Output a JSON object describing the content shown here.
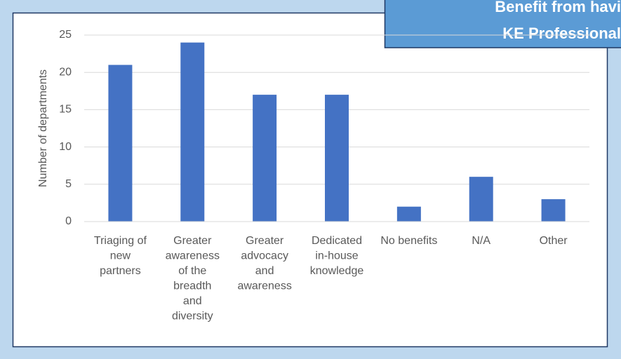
{
  "chart_data": {
    "type": "bar",
    "title": [
      "Benefit from havi",
      "KE Professional"
    ],
    "y_label": "Number of departments",
    "categories": [
      "Triaging of new partners",
      "Greater awareness of the breadth and diversity",
      "Greater advocacy and awareness",
      "Dedicated in-house knowledge",
      "No benefits",
      "N/A",
      "Other"
    ],
    "values": [
      21,
      24,
      17,
      17,
      2,
      6,
      3
    ],
    "color": "#4472c4",
    "ylim": [
      0,
      25
    ],
    "yticks": [
      0,
      5,
      10,
      15,
      20,
      25
    ],
    "grid": true
  }
}
